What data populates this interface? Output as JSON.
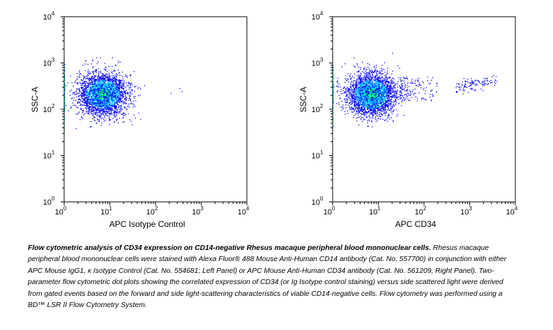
{
  "chart_data": [
    {
      "type": "scatter",
      "panel": "left",
      "xlabel": "APC Isotype Control",
      "ylabel": "SSC-A",
      "x_scale": "log",
      "y_scale": "log",
      "xlim": [
        1,
        10000
      ],
      "ylim": [
        1,
        10000
      ],
      "x_ticks": [
        "10^0",
        "10^1",
        "10^2",
        "10^3",
        "10^4"
      ],
      "y_ticks": [
        "10^0",
        "10^1",
        "10^2",
        "10^3",
        "10^4"
      ],
      "grid": false,
      "population": {
        "description": "dense cluster",
        "x_range": [
          1,
          30
        ],
        "x_center": 7,
        "y_range": [
          50,
          600
        ],
        "y_center": 210
      },
      "sparse_events": [
        {
          "x": 220,
          "y": 220
        },
        {
          "x": 340,
          "y": 280
        },
        {
          "x": 380,
          "y": 240
        }
      ]
    },
    {
      "type": "scatter",
      "panel": "right",
      "xlabel": "APC CD34",
      "ylabel": "SSC-A",
      "x_scale": "log",
      "y_scale": "log",
      "xlim": [
        1,
        10000
      ],
      "ylim": [
        1,
        10000
      ],
      "x_ticks": [
        "10^0",
        "10^1",
        "10^2",
        "10^3",
        "10^4"
      ],
      "y_ticks": [
        "10^0",
        "10^1",
        "10^2",
        "10^3",
        "10^4"
      ],
      "grid": false,
      "population": {
        "description": "dense cluster",
        "x_range": [
          1,
          30
        ],
        "x_center": 7,
        "y_range": [
          50,
          600
        ],
        "y_center": 210
      },
      "tail": {
        "description": "scattered events along tail toward high CD34",
        "x_range": [
          30,
          200
        ],
        "y_range": [
          150,
          500
        ]
      },
      "positive_events": {
        "description": "CD34-positive population",
        "x_range": [
          500,
          4000
        ],
        "y_range": [
          220,
          480
        ]
      }
    }
  ],
  "colors": {
    "low_density": "#0000ff",
    "mid_density": "#00bfff",
    "high_density": "#00ff80",
    "axis": "#000000"
  },
  "caption": {
    "title": "Flow cytometric analysis of CD34 expression on CD14-negative Rhesus macaque peripheral blood mononuclear cells.",
    "body": "Rhesus macaque peripheral blood mononuclear cells were stained with Alexa Fluor® 488 Mouse Anti-Human CD14 antibody (Cat. No. 557700) in conjunction with either APC Mouse IgG1, κ Isotype Control (Cat. No. 554681; Left Panel) or APC Mouse Anti-Human CD34 antibody (Cat. No. 561209, Right Panel). Two-parameter flow cytometric dot plots showing the correlated expression of CD34 (or Ig Isotype control staining) versus side scattered light were derived from gated events based on the forward and side light-scattering characteristics of viable CD14-negative cells. Flow cytometry was performed using a BD™ LSR II Flow Cytometry System."
  }
}
